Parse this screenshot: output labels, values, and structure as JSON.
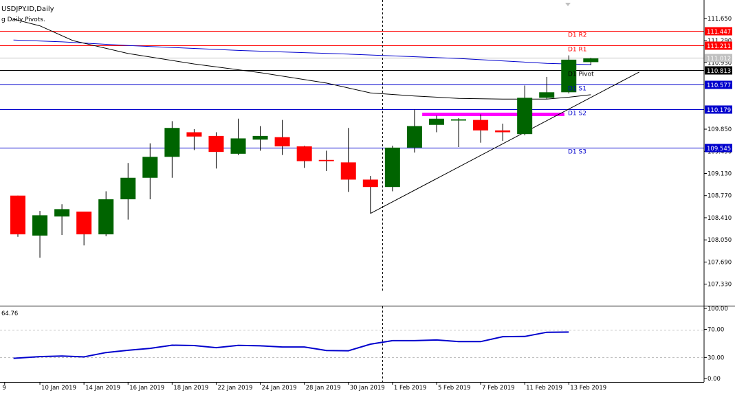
{
  "chart_data": {
    "type": "candlestick",
    "symbol_title": "USDJPY.ID,Daily",
    "indicator_title": "g Daily Pivots.",
    "colors": {
      "bull": "#006400",
      "bear": "#ff0000",
      "wick": "#000000",
      "grid": "#c0c0c0",
      "r_lines": "#ff0000",
      "s_lines": "#0000cd",
      "pivot_line": "#000000",
      "ma_slow": "#0000cd",
      "ma_fast": "#000000",
      "zone": "#ff00ff",
      "rsi_line": "#0000cd"
    },
    "price_axis": {
      "ylim": [
        106.98,
        111.95
      ],
      "ticks": [
        "111.650",
        "111.290",
        "110.930",
        "109.850",
        "109.490",
        "109.130",
        "108.770",
        "108.410",
        "108.050",
        "107.690",
        "107.330"
      ]
    },
    "pivots": [
      {
        "name": "D1 R2",
        "value": 111.447,
        "label": "111.447",
        "kind": "r"
      },
      {
        "name": "D1 R1",
        "value": 111.211,
        "label": "111.211",
        "kind": "r"
      },
      {
        "name": "D1 Pivot",
        "value": 110.813,
        "label": "110.813",
        "kind": "p"
      },
      {
        "name": "D1 S1",
        "value": 110.577,
        "label": "110.577",
        "kind": "s"
      },
      {
        "name": "D1 S2",
        "value": 110.179,
        "label": "110.179",
        "kind": "s"
      },
      {
        "name": "D1 S3",
        "value": 109.545,
        "label": "109.545",
        "kind": "s"
      }
    ],
    "current_price": {
      "value": 111.012,
      "label": "111.012"
    },
    "candles": [
      {
        "o": 108.77,
        "h": 108.77,
        "l": 108.1,
        "c": 108.14
      },
      {
        "o": 108.12,
        "h": 108.52,
        "l": 107.76,
        "c": 108.45
      },
      {
        "o": 108.43,
        "h": 108.63,
        "l": 108.13,
        "c": 108.55
      },
      {
        "o": 108.51,
        "h": 108.51,
        "l": 107.96,
        "c": 108.14
      },
      {
        "o": 108.14,
        "h": 108.84,
        "l": 108.11,
        "c": 108.71
      },
      {
        "o": 108.71,
        "h": 109.3,
        "l": 108.38,
        "c": 109.06
      },
      {
        "o": 109.06,
        "h": 109.62,
        "l": 108.71,
        "c": 109.4
      },
      {
        "o": 109.4,
        "h": 109.98,
        "l": 109.06,
        "c": 109.87
      },
      {
        "o": 109.8,
        "h": 109.85,
        "l": 109.51,
        "c": 109.73
      },
      {
        "o": 109.74,
        "h": 109.8,
        "l": 109.21,
        "c": 109.48
      },
      {
        "o": 109.45,
        "h": 110.02,
        "l": 109.43,
        "c": 109.7
      },
      {
        "o": 109.68,
        "h": 109.9,
        "l": 109.5,
        "c": 109.74
      },
      {
        "o": 109.72,
        "h": 110.0,
        "l": 109.43,
        "c": 109.57
      },
      {
        "o": 109.57,
        "h": 109.58,
        "l": 109.22,
        "c": 109.33
      },
      {
        "o": 109.35,
        "h": 109.5,
        "l": 109.17,
        "c": 109.33
      },
      {
        "o": 109.31,
        "h": 109.87,
        "l": 108.83,
        "c": 109.03
      },
      {
        "o": 109.03,
        "h": 109.09,
        "l": 108.48,
        "c": 108.91
      },
      {
        "o": 108.91,
        "h": 109.58,
        "l": 108.84,
        "c": 109.55
      },
      {
        "o": 109.55,
        "h": 110.17,
        "l": 109.47,
        "c": 109.9
      },
      {
        "o": 109.92,
        "h": 110.07,
        "l": 109.8,
        "c": 110.02
      },
      {
        "o": 109.99,
        "h": 110.03,
        "l": 109.56,
        "c": 110.01
      },
      {
        "o": 110.0,
        "h": 110.09,
        "l": 109.63,
        "c": 109.83
      },
      {
        "o": 109.83,
        "h": 109.94,
        "l": 109.66,
        "c": 109.8
      },
      {
        "o": 109.77,
        "h": 110.56,
        "l": 109.75,
        "c": 110.36
      },
      {
        "o": 110.36,
        "h": 110.7,
        "l": 110.34,
        "c": 110.45
      },
      {
        "o": 110.45,
        "h": 111.05,
        "l": 110.43,
        "c": 110.98
      },
      {
        "o": 110.94,
        "h": 111.01,
        "l": 110.89,
        "c": 111.0
      }
    ],
    "ma_slow": [
      {
        "i": -0.2,
        "v": 111.3
      },
      {
        "i": 2,
        "v": 111.27
      },
      {
        "i": 5,
        "v": 111.21
      },
      {
        "i": 10,
        "v": 111.13
      },
      {
        "i": 15,
        "v": 111.07
      },
      {
        "i": 20,
        "v": 111.0
      },
      {
        "i": 24,
        "v": 110.92
      },
      {
        "i": 26,
        "v": 110.9
      }
    ],
    "ma_fast": [
      {
        "i": -0.2,
        "v": 111.64
      },
      {
        "i": 1,
        "v": 111.53
      },
      {
        "i": 2.5,
        "v": 111.29
      },
      {
        "i": 5,
        "v": 111.08
      },
      {
        "i": 8,
        "v": 110.91
      },
      {
        "i": 11,
        "v": 110.77
      },
      {
        "i": 14,
        "v": 110.6
      },
      {
        "i": 16,
        "v": 110.44
      },
      {
        "i": 18,
        "v": 110.39
      },
      {
        "i": 20,
        "v": 110.35
      },
      {
        "i": 22,
        "v": 110.34
      },
      {
        "i": 24,
        "v": 110.34
      },
      {
        "i": 25,
        "v": 110.37
      },
      {
        "i": 26,
        "v": 110.41
      }
    ],
    "trendline": [
      {
        "i": 16,
        "v": 108.48
      },
      {
        "i": 28.2,
        "v": 110.78
      }
    ],
    "zone": {
      "i_start": 18.35,
      "i_end": 24.8,
      "v": 110.09
    },
    "vline_index": 16.55,
    "rsi": {
      "label": "64.76",
      "ylim": [
        -5,
        103
      ],
      "ticks": [
        "100.00",
        "70.00",
        "30.00",
        "0.00"
      ],
      "levels": [
        70,
        30
      ],
      "values": [
        [
          -0.2,
          28.8
        ],
        [
          1,
          31.2
        ],
        [
          2,
          32.0
        ],
        [
          3,
          30.8
        ],
        [
          4,
          37.0
        ],
        [
          5,
          40.3
        ],
        [
          6,
          43.0
        ],
        [
          7,
          47.5
        ],
        [
          8,
          47.0
        ],
        [
          9,
          44.0
        ],
        [
          10,
          47.2
        ],
        [
          11,
          46.6
        ],
        [
          12,
          45.0
        ],
        [
          13,
          45.0
        ],
        [
          14,
          40.0
        ],
        [
          15,
          39.6
        ],
        [
          16,
          49.0
        ],
        [
          17,
          54.0
        ],
        [
          18,
          54.0
        ],
        [
          19,
          55.0
        ],
        [
          20,
          52.6
        ],
        [
          21,
          52.6
        ],
        [
          22,
          59.7
        ],
        [
          23,
          60.0
        ],
        [
          24,
          66.0
        ],
        [
          25,
          66.3
        ]
      ]
    },
    "x_labels": [
      {
        "i": -0.6,
        "label": "9"
      },
      {
        "i": 1.0,
        "label": "10 Jan 2019"
      },
      {
        "i": 3.0,
        "label": "14 Jan 2019"
      },
      {
        "i": 5.0,
        "label": "16 Jan 2019"
      },
      {
        "i": 7.0,
        "label": "18 Jan 2019"
      },
      {
        "i": 9.0,
        "label": "22 Jan 2019"
      },
      {
        "i": 11.0,
        "label": "24 Jan 2019"
      },
      {
        "i": 13.0,
        "label": "28 Jan 2019"
      },
      {
        "i": 15.0,
        "label": "30 Jan 2019"
      },
      {
        "i": 17.0,
        "label": "1 Feb 2019"
      },
      {
        "i": 19.0,
        "label": "5 Feb 2019"
      },
      {
        "i": 21.0,
        "label": "7 Feb 2019"
      },
      {
        "i": 23.0,
        "label": "11 Feb 2019"
      },
      {
        "i": 25.0,
        "label": "13 Feb 2019"
      }
    ]
  }
}
